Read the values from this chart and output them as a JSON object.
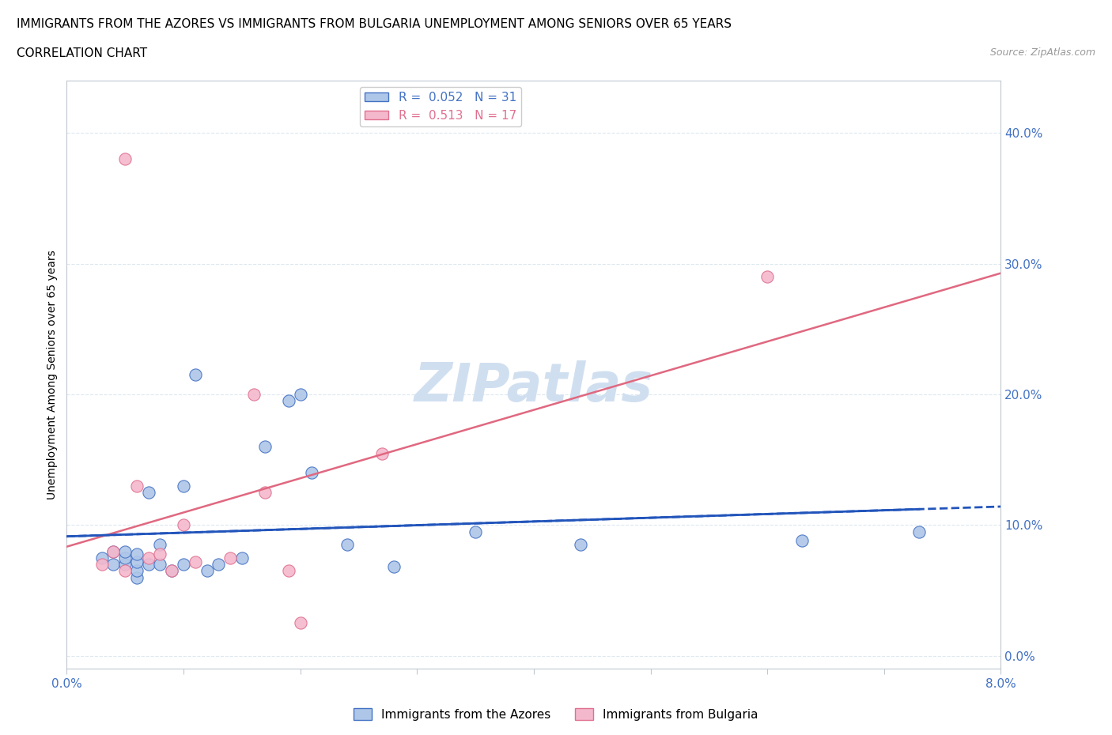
{
  "title_line1": "IMMIGRANTS FROM THE AZORES VS IMMIGRANTS FROM BULGARIA UNEMPLOYMENT AMONG SENIORS OVER 65 YEARS",
  "title_line2": "CORRELATION CHART",
  "source_text": "Source: ZipAtlas.com",
  "ylabel": "Unemployment Among Seniors over 65 years",
  "xmin": 0.0,
  "xmax": 0.08,
  "ymin": -0.01,
  "ymax": 0.44,
  "yticks": [
    0.0,
    0.1,
    0.2,
    0.3,
    0.4
  ],
  "ytick_labels": [
    "0.0%",
    "10.0%",
    "20.0%",
    "30.0%",
    "40.0%"
  ],
  "xticks": [
    0.0,
    0.01,
    0.02,
    0.03,
    0.04,
    0.05,
    0.06,
    0.07,
    0.08
  ],
  "xtick_labels": [
    "0.0%",
    "",
    "",
    "",
    "",
    "",
    "",
    "",
    "8.0%"
  ],
  "series1_name": "Immigrants from the Azores",
  "series1_color": "#aec6e8",
  "series1_edge_color": "#4472c4",
  "series1_R": 0.052,
  "series1_N": 31,
  "series2_name": "Immigrants from Bulgaria",
  "series2_color": "#f4b8cc",
  "series2_edge_color": "#e07090",
  "series2_R": 0.513,
  "series2_N": 17,
  "line1_color": "#2255bb",
  "line2_color": "#e06880",
  "watermark": "ZIPatlas",
  "watermark_color": "#d0dff0",
  "series1_x": [
    0.003,
    0.004,
    0.004,
    0.005,
    0.005,
    0.005,
    0.006,
    0.006,
    0.006,
    0.006,
    0.007,
    0.007,
    0.008,
    0.008,
    0.009,
    0.01,
    0.01,
    0.011,
    0.012,
    0.013,
    0.015,
    0.017,
    0.019,
    0.02,
    0.021,
    0.024,
    0.028,
    0.035,
    0.044,
    0.063,
    0.073
  ],
  "series1_y": [
    0.075,
    0.07,
    0.08,
    0.07,
    0.075,
    0.08,
    0.06,
    0.065,
    0.072,
    0.078,
    0.07,
    0.125,
    0.085,
    0.07,
    0.065,
    0.13,
    0.07,
    0.215,
    0.065,
    0.07,
    0.075,
    0.16,
    0.195,
    0.2,
    0.14,
    0.085,
    0.068,
    0.095,
    0.085,
    0.088,
    0.095
  ],
  "series2_x": [
    0.003,
    0.004,
    0.005,
    0.005,
    0.006,
    0.007,
    0.008,
    0.009,
    0.01,
    0.011,
    0.014,
    0.016,
    0.017,
    0.019,
    0.027,
    0.06,
    0.02
  ],
  "series2_y": [
    0.07,
    0.08,
    0.065,
    0.38,
    0.13,
    0.075,
    0.078,
    0.065,
    0.1,
    0.072,
    0.075,
    0.2,
    0.125,
    0.065,
    0.155,
    0.29,
    0.025
  ],
  "background_color": "#ffffff",
  "grid_color": "#dde8f0",
  "axis_color": "#c0c8d0",
  "title_fontsize": 11,
  "ylabel_fontsize": 10,
  "tick_fontsize": 11,
  "legend_fontsize": 11,
  "watermark_fontsize": 48
}
